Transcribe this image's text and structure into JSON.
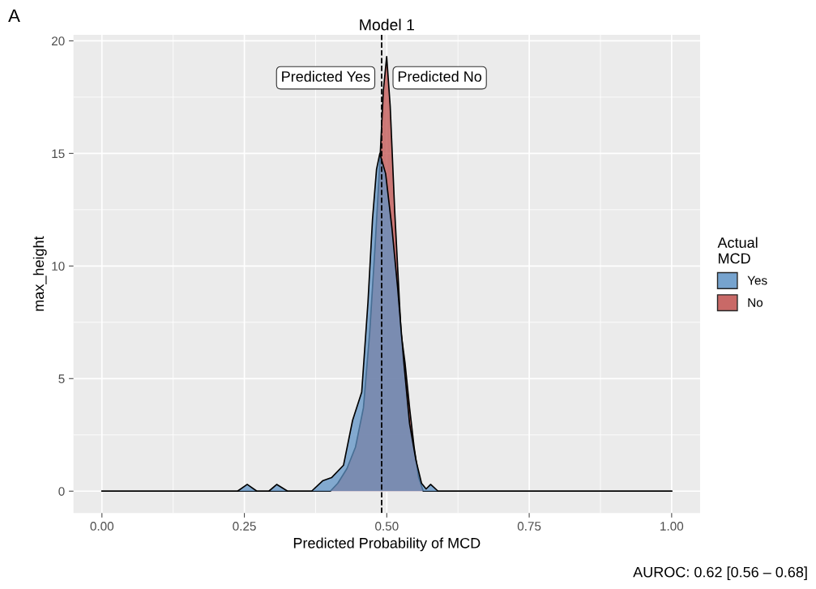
{
  "chart_data": {
    "type": "area",
    "title": "Model 1",
    "xlabel": "Predicted Probability of MCD",
    "ylabel": "max_height",
    "legend_title": "Actual\nMCD",
    "xlim": [
      -0.05,
      1.05
    ],
    "xticks": [
      {
        "value": 0,
        "label": "0.00"
      },
      {
        "value": 0.25,
        "label": "0.25"
      },
      {
        "value": 0.5,
        "label": "0.50"
      },
      {
        "value": 0.75,
        "label": "0.75"
      },
      {
        "value": 1,
        "label": "1.00"
      }
    ],
    "ylim": [
      -0.97,
      20.27
    ],
    "yticks": [
      0,
      5,
      10,
      15,
      20
    ],
    "grid": true,
    "legend": "right",
    "series": [
      {
        "name": "Yes",
        "color": "#5f93c6",
        "x": [
          0,
          0.238,
          0.255,
          0.272,
          0.293,
          0.307,
          0.326,
          0.368,
          0.388,
          0.403,
          0.424,
          0.44,
          0.456,
          0.467,
          0.475,
          0.482,
          0.4878,
          0.498,
          0.509,
          0.519,
          0.53,
          0.54,
          0.551,
          0.561,
          0.569,
          0.577,
          0.59,
          1
        ],
        "values": [
          0,
          0,
          0.3,
          0,
          0,
          0.3,
          0,
          0,
          0.47,
          0.6,
          1.15,
          3.15,
          4.4,
          8.4,
          12.1,
          14.3,
          15.0,
          14.1,
          11.7,
          9.05,
          5.7,
          3.0,
          1.4,
          0.35,
          0.1,
          0.3,
          0,
          0
        ]
      },
      {
        "name": "No",
        "color": "#c0504d",
        "x": [
          0,
          0.401,
          0.414,
          0.43,
          0.445,
          0.459,
          0.47,
          0.48,
          0.488,
          0.494,
          0.4998,
          0.506,
          0.514,
          0.525,
          0.532,
          0.54,
          0.548,
          0.556,
          0.564,
          1
        ],
        "values": [
          0,
          0,
          0.35,
          1.0,
          1.95,
          3.7,
          7.05,
          11.1,
          14.7,
          17.8,
          19.3,
          17.1,
          12.4,
          7.05,
          5.7,
          3.7,
          1.95,
          0.6,
          0,
          0
        ]
      }
    ],
    "ref_lines": [
      {
        "axis": "x",
        "value": 0.491,
        "line_style": "dashed",
        "color": "#000000"
      }
    ],
    "annotations": [
      "Predicted Yes",
      "Predicted No",
      "A",
      "AUROC: 0.62 [0.56 – 0.68]"
    ]
  }
}
